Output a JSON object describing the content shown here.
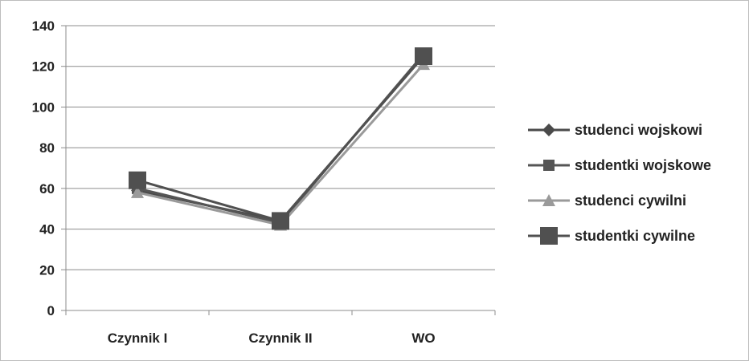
{
  "chart_data": {
    "type": "line",
    "categories": [
      "Czynnik I",
      "Czynnik II",
      "WO"
    ],
    "ylim": [
      0,
      140
    ],
    "yticks": [
      0,
      20,
      40,
      60,
      80,
      100,
      120,
      140
    ],
    "grid": true,
    "legend_position": "right",
    "series": [
      {
        "name": "studenci wojskowi",
        "values": [
          59,
          44,
          125
        ],
        "marker": "diamond",
        "color": "#4a4a4a"
      },
      {
        "name": "studentki wojskowe",
        "values": [
          60,
          43,
          126
        ],
        "marker": "square",
        "color": "#555555"
      },
      {
        "name": "studenci cywilni",
        "values": [
          58,
          42,
          121
        ],
        "marker": "triangle",
        "color": "#9a9a9a"
      },
      {
        "name": "studentki cywilne",
        "values": [
          64,
          44,
          125
        ],
        "marker": "square-large",
        "color": "#505050"
      }
    ]
  }
}
